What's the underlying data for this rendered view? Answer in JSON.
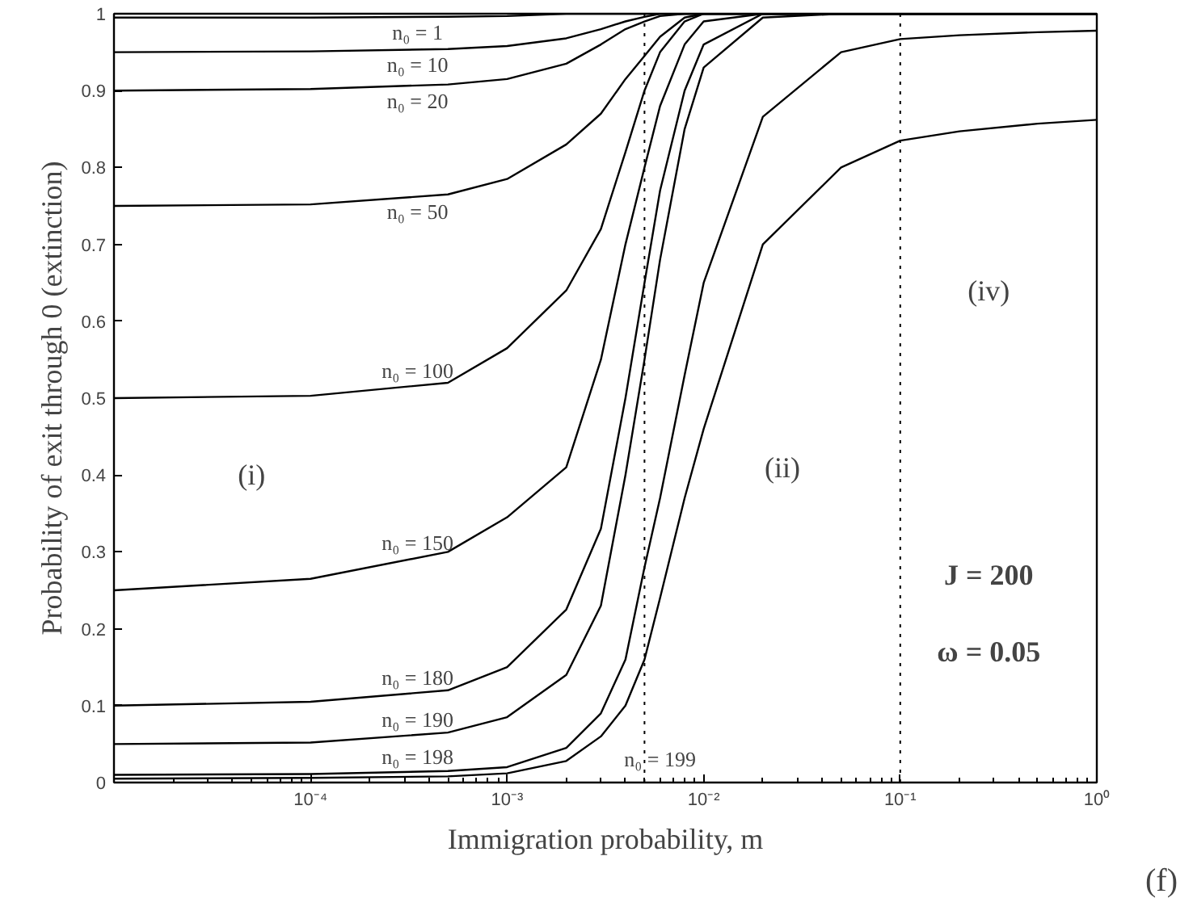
{
  "chart_data": {
    "type": "line",
    "xlabel": "Immigration probability, m",
    "ylabel": "Probability of exit through 0 (extinction)",
    "log": "x",
    "grid": false,
    "marker": "none",
    "line_style": "solid",
    "x": [
      1e-05,
      0.0001,
      0.0005,
      0.001,
      0.002,
      0.003,
      0.004,
      0.005,
      0.006,
      0.008,
      0.01,
      0.02,
      0.05,
      0.1,
      0.2,
      0.5,
      1
    ],
    "xlim": [
      1e-05,
      1
    ],
    "ylim": [
      0,
      1
    ],
    "xticks": [
      {
        "value": 0.0001,
        "label": "10⁻⁴"
      },
      {
        "value": 0.001,
        "label": "10⁻³"
      },
      {
        "value": 0.01,
        "label": "10⁻²"
      },
      {
        "value": 0.1,
        "label": "10⁻¹"
      },
      {
        "value": 1,
        "label": "10⁰"
      }
    ],
    "yticks": [
      0,
      0.1,
      0.2,
      0.3,
      0.4,
      0.5,
      0.6,
      0.7,
      0.8,
      0.9,
      1
    ],
    "series": [
      {
        "name": "n₀ = 1",
        "color": "#000000",
        "values": [
          0.995,
          0.995,
          0.996,
          0.997,
          1,
          1,
          1,
          1,
          1,
          1,
          1,
          1,
          1,
          1,
          1,
          1,
          1
        ]
      },
      {
        "name": "n₀ = 10",
        "color": "#000000",
        "values": [
          0.95,
          0.951,
          0.954,
          0.958,
          0.968,
          0.98,
          0.99,
          0.996,
          1,
          1,
          1,
          1,
          1,
          1,
          1,
          1,
          1
        ]
      },
      {
        "name": "n₀ = 20",
        "color": "#000000",
        "values": [
          0.9,
          0.902,
          0.908,
          0.915,
          0.935,
          0.96,
          0.98,
          0.99,
          0.997,
          1,
          1,
          1,
          1,
          1,
          1,
          1,
          1
        ]
      },
      {
        "name": "n₀ = 50",
        "color": "#000000",
        "values": [
          0.75,
          0.752,
          0.765,
          0.785,
          0.83,
          0.87,
          0.915,
          0.945,
          0.97,
          0.995,
          1,
          1,
          1,
          1,
          1,
          1,
          1
        ]
      },
      {
        "name": "n₀ = 100",
        "color": "#000000",
        "values": [
          0.5,
          0.503,
          0.52,
          0.565,
          0.64,
          0.72,
          0.82,
          0.9,
          0.95,
          0.99,
          1,
          1,
          1,
          1,
          1,
          1,
          1
        ]
      },
      {
        "name": "n₀ = 150",
        "color": "#000000",
        "values": [
          0.25,
          0.265,
          0.3,
          0.345,
          0.41,
          0.55,
          0.7,
          0.8,
          0.88,
          0.96,
          0.99,
          1,
          1,
          1,
          1,
          1,
          1
        ]
      },
      {
        "name": "n₀ = 180",
        "color": "#000000",
        "values": [
          0.1,
          0.105,
          0.12,
          0.15,
          0.225,
          0.33,
          0.5,
          0.65,
          0.77,
          0.9,
          0.96,
          1,
          1,
          1,
          1,
          1,
          1
        ]
      },
      {
        "name": "n₀ = 190",
        "color": "#000000",
        "values": [
          0.05,
          0.052,
          0.065,
          0.085,
          0.14,
          0.23,
          0.4,
          0.55,
          0.68,
          0.85,
          0.93,
          0.995,
          1,
          1,
          1,
          1,
          1
        ]
      },
      {
        "name": "n₀ = 198",
        "color": "#000000",
        "values": [
          0.01,
          0.011,
          0.015,
          0.02,
          0.045,
          0.09,
          0.16,
          0.28,
          0.37,
          0.53,
          0.65,
          0.866,
          0.95,
          0.967,
          0.972,
          0.976,
          0.978
        ]
      },
      {
        "name": "n₀ = 199",
        "color": "#000000",
        "values": [
          0.005,
          0.006,
          0.008,
          0.012,
          0.028,
          0.06,
          0.1,
          0.16,
          0.24,
          0.37,
          0.46,
          0.7,
          0.8,
          0.835,
          0.847,
          0.857,
          0.862
        ]
      }
    ],
    "ref_lines": [
      {
        "axis": "x",
        "value": 0.005,
        "color": "#000000",
        "line_style": "dotted"
      },
      {
        "axis": "x",
        "value": 0.1,
        "color": "#000000",
        "line_style": "dotted"
      }
    ],
    "annotations": [
      "(i)",
      "(ii)",
      "(iv)",
      "J = 200",
      "ω = 0.05",
      "(f)"
    ]
  }
}
